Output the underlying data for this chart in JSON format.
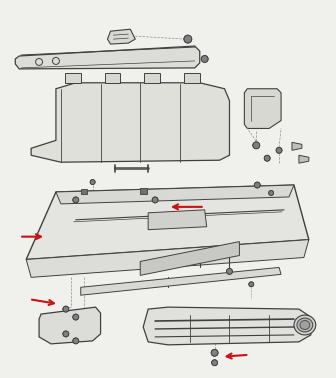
{
  "bg_color": "#f0f0ec",
  "line_color": "#404040",
  "dashed_color": "#909090",
  "red_arrow_color": "#cc1111",
  "fig_width": 3.36,
  "fig_height": 3.78,
  "dpi": 100
}
